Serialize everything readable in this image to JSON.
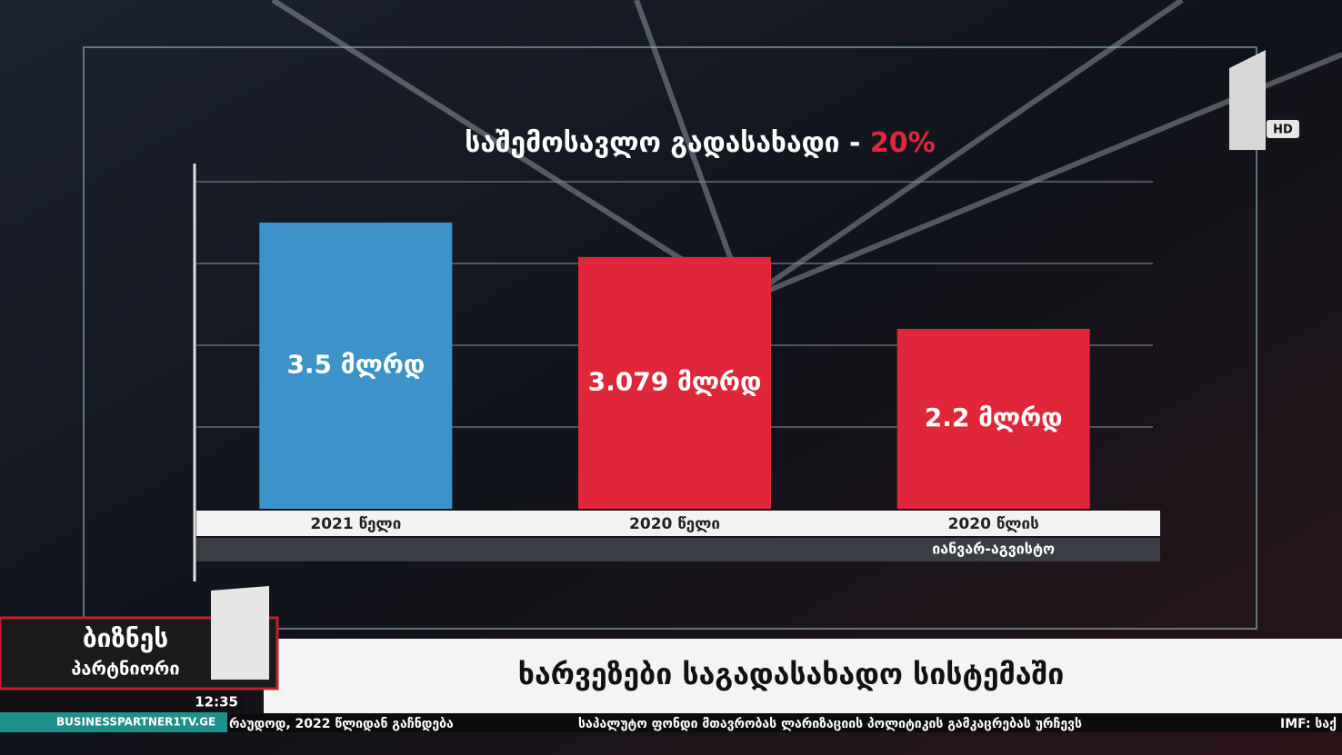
{
  "chart_data": {
    "type": "bar",
    "title": "საშემოსავლო გადასახადი -",
    "title_highlight": "20%",
    "categories": [
      "2021 წელი",
      "2020 წელი",
      "2020 წლის"
    ],
    "category_note": "იანვარ-აგვისტო",
    "values": [
      3.5,
      3.079,
      2.2
    ],
    "value_labels": [
      "3.5 მლრდ",
      "3.079 მლრდ",
      "2.2 მლრდ"
    ],
    "colors": [
      "#3b93c9",
      "#e0273a",
      "#e0273a"
    ],
    "ylim": [
      0,
      4
    ],
    "yticks": [
      1,
      2,
      3,
      4
    ],
    "grid": true
  },
  "broadcast": {
    "channel_badge": "HD",
    "show_name": [
      "ბიზნეს",
      "პარტნიორი"
    ],
    "clock": "12:35",
    "website": "BUSINESSPARTNER1TV.GE",
    "headline": "ხარვეზები საგადასახადო სისტემაში",
    "ticker": [
      "რაუდოდ, 2022 წლიდან გაჩნდება",
      "საპალუტო ფონდი მთავრობას ლარიზაციის პოლიტიკის გამკაცრებას ურჩევს",
      "IMF: საქ"
    ]
  }
}
